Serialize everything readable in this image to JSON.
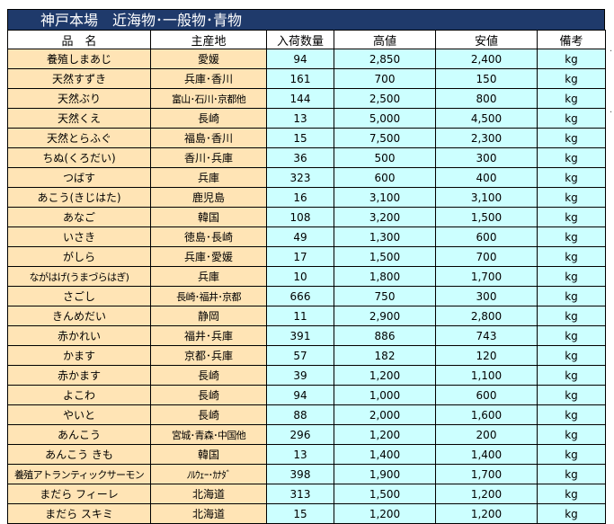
{
  "sheet": {
    "title": "神戸本場　近海物･一般物･青物",
    "headers": {
      "name": "品　名",
      "origin": "主産地",
      "qty": "入荷数量",
      "high": "高値",
      "low": "安値",
      "note": "備考"
    },
    "rows": [
      {
        "name": "養殖しまあじ",
        "origin": "愛媛",
        "qty": "94",
        "high": "2,850",
        "low": "2,400",
        "unit": "kg"
      },
      {
        "name": "天然すずき",
        "origin": "兵庫･香川",
        "qty": "161",
        "high": "700",
        "low": "150",
        "unit": "kg"
      },
      {
        "name": "天然ぶり",
        "origin": "富山･石川･京都他",
        "qty": "144",
        "high": "2,500",
        "low": "800",
        "unit": "kg"
      },
      {
        "name": "天然くえ",
        "origin": "長崎",
        "qty": "13",
        "high": "5,000",
        "low": "4,500",
        "unit": "kg"
      },
      {
        "name": "天然とらふぐ",
        "origin": "福島･香川",
        "qty": "15",
        "high": "7,500",
        "low": "2,300",
        "unit": "kg"
      },
      {
        "name": "ちぬ(くろだい)",
        "origin": "香川･兵庫",
        "qty": "36",
        "high": "500",
        "low": "300",
        "unit": "kg"
      },
      {
        "name": "つばす",
        "origin": "兵庫",
        "qty": "323",
        "high": "600",
        "low": "400",
        "unit": "kg"
      },
      {
        "name": "あこう(きじはた)",
        "origin": "鹿児島",
        "qty": "16",
        "high": "3,100",
        "low": "3,100",
        "unit": "kg"
      },
      {
        "name": "あなご",
        "origin": "韓国",
        "qty": "108",
        "high": "3,200",
        "low": "1,500",
        "unit": "kg"
      },
      {
        "name": "いさき",
        "origin": "徳島･長崎",
        "qty": "49",
        "high": "1,300",
        "low": "600",
        "unit": "kg"
      },
      {
        "name": "がしら",
        "origin": "兵庫･愛媛",
        "qty": "17",
        "high": "1,500",
        "low": "700",
        "unit": "kg"
      },
      {
        "name": "ながはげ(うまづらはぎ)",
        "origin": "兵庫",
        "qty": "10",
        "high": "1,800",
        "low": "1,700",
        "unit": "kg"
      },
      {
        "name": "さごし",
        "origin": "長崎･福井･京都",
        "qty": "666",
        "high": "750",
        "low": "300",
        "unit": "kg"
      },
      {
        "name": "きんめだい",
        "origin": "静岡",
        "qty": "11",
        "high": "2,900",
        "low": "2,800",
        "unit": "kg"
      },
      {
        "name": "赤かれい",
        "origin": "福井･兵庫",
        "qty": "391",
        "high": "886",
        "low": "743",
        "unit": "kg"
      },
      {
        "name": "かます",
        "origin": "京都･兵庫",
        "qty": "57",
        "high": "182",
        "low": "120",
        "unit": "kg"
      },
      {
        "name": "赤かます",
        "origin": "長崎",
        "qty": "39",
        "high": "1,200",
        "low": "1,100",
        "unit": "kg"
      },
      {
        "name": "よこわ",
        "origin": "長崎",
        "qty": "94",
        "high": "1,000",
        "low": "600",
        "unit": "kg"
      },
      {
        "name": "やいと",
        "origin": "長崎",
        "qty": "88",
        "high": "2,000",
        "low": "1,600",
        "unit": "kg"
      },
      {
        "name": "あんこう",
        "origin": "宮城･青森･中国他",
        "qty": "296",
        "high": "1,200",
        "low": "200",
        "unit": "kg"
      },
      {
        "name": "あんこう きも",
        "origin": "韓国",
        "qty": "13",
        "high": "1,400",
        "low": "1,400",
        "unit": "kg"
      },
      {
        "name": "養殖アトランティックサーモン",
        "origin": "ﾉﾙｳｪｰ･ｶﾅﾀﾞ",
        "qty": "398",
        "high": "1,900",
        "low": "1,700",
        "unit": "kg"
      },
      {
        "name": "まだら フィーレ",
        "origin": "北海道",
        "qty": "313",
        "high": "1,500",
        "low": "1,200",
        "unit": "kg"
      },
      {
        "name": "まだら スキミ",
        "origin": "北海道",
        "qty": "15",
        "high": "1,200",
        "low": "1,200",
        "unit": "kg"
      }
    ]
  }
}
